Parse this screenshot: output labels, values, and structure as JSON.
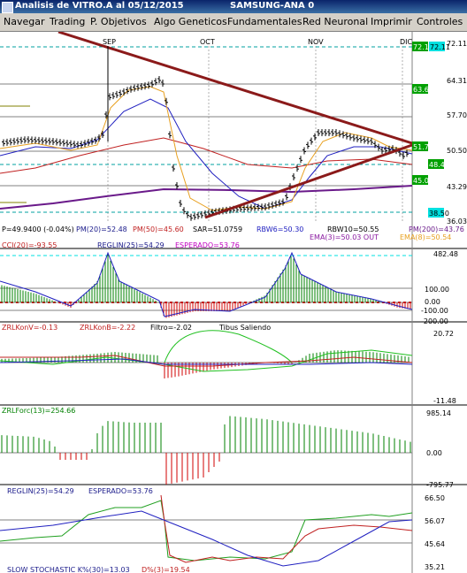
{
  "window": {
    "title": "Analisis de VITRO.A al 05/12/2015",
    "instrument": "SAMSUNG-ANA 0"
  },
  "menu": [
    "Navegar",
    "Trading",
    "P. Objetivos",
    "Algo Geneticos",
    "Fundamentales",
    "Red Neuronal",
    "Imprimir",
    "Controles"
  ],
  "colors": {
    "titlebar": "#0a246a",
    "menubar": "#d4d0c8",
    "price_bars": "#000000",
    "trendline": "#8b1a1a",
    "ema_fast": "#e8a020",
    "ema_slow": "#2020c0",
    "pm200": "#6a1a8a",
    "pm50": "#c02020",
    "price_label_green": "#00a000",
    "price_label_cyan": "#00e0e0",
    "dashed_level": "#00a0a0",
    "hist_green": "#008000",
    "hist_red": "#d00000"
  },
  "price_panel": {
    "months": [
      "SEP",
      "OCT",
      "NOV",
      "DIC"
    ],
    "axis_ticks": [
      "72.11",
      "64.31",
      "57.70",
      "50.50",
      "43.29",
      "36.03"
    ],
    "level_labels": [
      {
        "text": "72.11",
        "style": "green"
      },
      {
        "text": "72.11",
        "style": "cyan"
      },
      {
        "text": "63.65",
        "style": "green"
      },
      {
        "text": "51.76",
        "style": "green"
      },
      {
        "text": "48.41",
        "style": "green"
      },
      {
        "text": "45.03",
        "style": "green"
      },
      {
        "text": "38.50",
        "style": "cyan"
      }
    ],
    "readouts_row1": [
      "P=49.9400 (-0.04%)",
      "PM(20)=52.48",
      "PM(50)=45.60",
      "SAR=51.0759",
      "RBW6=50.30",
      "RBW10=50.55",
      "PM(200)=43.76"
    ],
    "readouts_row2": [
      "EMA(3)=50.03 OUT",
      "EMA(8)=50.54"
    ]
  },
  "cci_panel": {
    "labels": [
      "CCI(20)=-93.55",
      "REGLIN(25)=54.29",
      "ESPERADO=53.76"
    ],
    "axis_ticks": [
      "482.48",
      "100.00",
      "0.00",
      "-100.00",
      "-200.00"
    ]
  },
  "zrl_panel": {
    "labels": [
      "ZRLKonV=-0.13",
      "ZRLKonB=-2.22",
      "Filtro=-2.02",
      "Tibus Saliendo"
    ],
    "axis_ticks": [
      "20.72",
      "-11.48"
    ]
  },
  "force_panel": {
    "labels": [
      "ZRLForc(13)=254.66"
    ],
    "axis_ticks": [
      "985.14",
      "0.00",
      "-795.77"
    ]
  },
  "stoch_panel": {
    "labels": [
      "REGLIN(25)=54.29",
      "ESPERADO=53.76"
    ],
    "axis_ticks": [
      "66.50",
      "56.07",
      "45.64",
      "35.21"
    ]
  },
  "bottom_label": {
    "label1": "SLOW STOCHASTIC K%(30)=13.03",
    "label2": "D%(3)=19.54"
  }
}
